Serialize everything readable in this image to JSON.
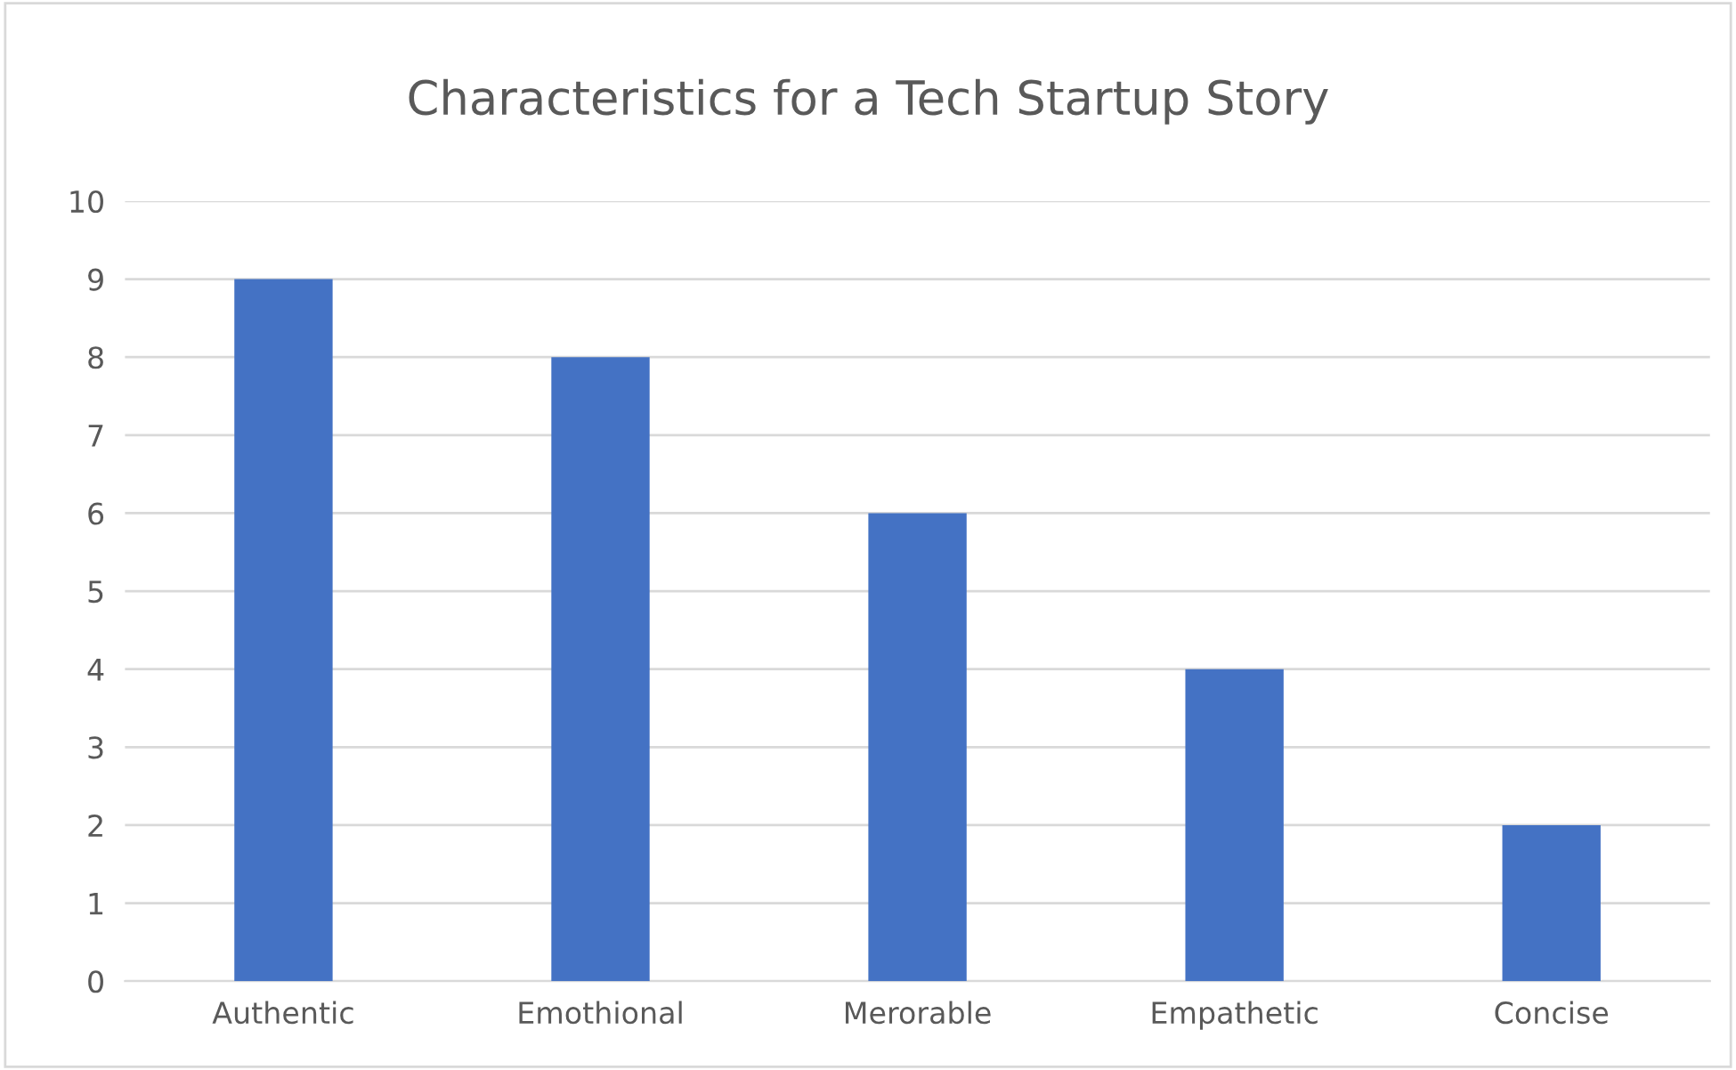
{
  "chart_data": {
    "type": "bar",
    "title": "Characteristics for a Tech Startup Story",
    "categories": [
      "Authentic",
      "Emothional",
      "Merorable",
      "Empathetic",
      "Concise"
    ],
    "values": [
      9,
      8,
      6,
      4,
      2
    ],
    "color": "#4472c4",
    "ylim": [
      0,
      10
    ],
    "yticks": [
      0,
      1,
      2,
      3,
      4,
      5,
      6,
      7,
      8,
      9,
      10
    ],
    "grid": "y"
  }
}
